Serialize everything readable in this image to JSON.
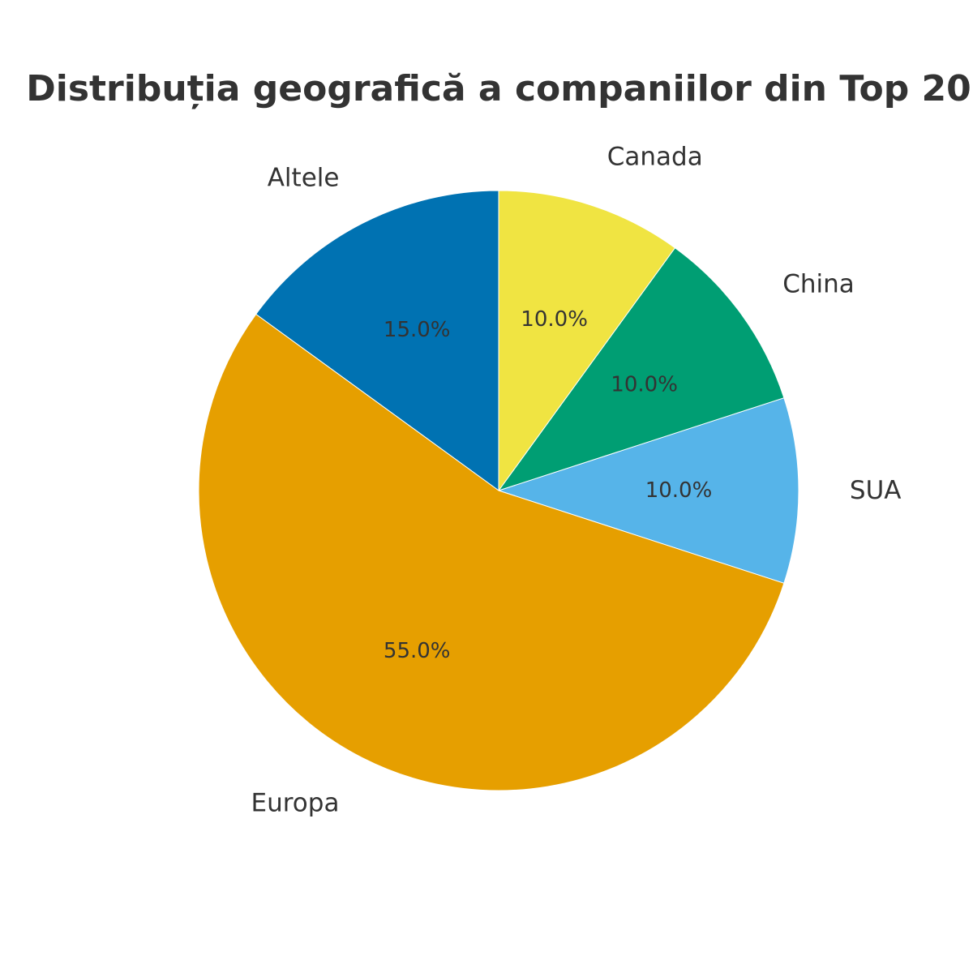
{
  "chart_data": {
    "type": "pie",
    "title": "Distribuția geografică a companiilor din Top 20",
    "slices": [
      {
        "label": "SUA",
        "value": 10.0,
        "pct_label": "10.0%",
        "color": "#56B4E9"
      },
      {
        "label": "China",
        "value": 10.0,
        "pct_label": "10.0%",
        "color": "#009E73"
      },
      {
        "label": "Canada",
        "value": 10.0,
        "pct_label": "10.0%",
        "color": "#F0E442"
      },
      {
        "label": "Altele",
        "value": 15.0,
        "pct_label": "15.0%",
        "color": "#0072B2"
      },
      {
        "label": "Europa",
        "value": 55.0,
        "pct_label": "55.0%",
        "color": "#E69F00"
      }
    ],
    "start_angle_deg": -18,
    "direction": "counterclockwise",
    "legend": "none"
  }
}
